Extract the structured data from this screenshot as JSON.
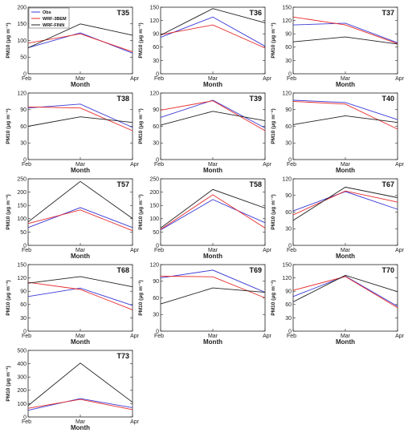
{
  "figure": {
    "legend": {
      "entries": [
        {
          "label": "Obs",
          "color": "#3b3bd6"
        },
        {
          "label": "WRF-3BEM",
          "color": "#e82a2a"
        },
        {
          "label": "WRF-FINN",
          "color": "#222222"
        }
      ],
      "placement": "top-left of first panel"
    }
  },
  "chart_data": [
    {
      "type": "line",
      "title": "T35",
      "categories": [
        "Feb",
        "Mar",
        "Apr"
      ],
      "xlabel": "Month",
      "ylabel": "PM10 (μg m⁻³)",
      "ylim": [
        0,
        200
      ],
      "yticks": [
        0,
        50,
        100,
        150,
        200
      ],
      "series": [
        {
          "name": "Obs",
          "values": [
            78,
            123,
            62
          ]
        },
        {
          "name": "WRF-3BEM",
          "values": [
            92,
            120,
            66
          ]
        },
        {
          "name": "WRF-FINN",
          "values": [
            78,
            150,
            116
          ]
        }
      ]
    },
    {
      "type": "line",
      "title": "T36",
      "categories": [
        "Feb",
        "Mar",
        "Apr"
      ],
      "xlabel": "Month",
      "ylabel": "PM10 (μg m⁻³)",
      "ylim": [
        0,
        150
      ],
      "yticks": [
        0,
        30,
        60,
        90,
        120,
        150
      ],
      "series": [
        {
          "name": "Obs",
          "values": [
            82,
            128,
            62
          ]
        },
        {
          "name": "WRF-3BEM",
          "values": [
            88,
            110,
            58
          ]
        },
        {
          "name": "WRF-FINN",
          "values": [
            87,
            147,
            115
          ]
        }
      ]
    },
    {
      "type": "line",
      "title": "T37",
      "categories": [
        "Feb",
        "Mar",
        "Apr"
      ],
      "xlabel": "Month",
      "ylabel": "PM10 (μg m⁻³)",
      "ylim": [
        0,
        150
      ],
      "yticks": [
        0,
        30,
        60,
        90,
        120,
        150
      ],
      "series": [
        {
          "name": "Obs",
          "values": [
            110,
            114,
            70
          ]
        },
        {
          "name": "WRF-3BEM",
          "values": [
            128,
            110,
            68
          ]
        },
        {
          "name": "WRF-FINN",
          "values": [
            72,
            83,
            67
          ]
        }
      ]
    },
    {
      "type": "line",
      "title": "T38",
      "categories": [
        "Feb",
        "Mar",
        "Apr"
      ],
      "xlabel": "Month",
      "ylabel": "PM10 (μg m⁻³)",
      "ylim": [
        0,
        120
      ],
      "yticks": [
        0,
        30,
        60,
        90,
        120
      ],
      "series": [
        {
          "name": "Obs",
          "values": [
            93,
            100,
            58
          ]
        },
        {
          "name": "WRF-3BEM",
          "values": [
            95,
            93,
            52
          ]
        },
        {
          "name": "WRF-FINN",
          "values": [
            60,
            77,
            67
          ]
        }
      ]
    },
    {
      "type": "line",
      "title": "T39",
      "categories": [
        "Feb",
        "Mar",
        "Apr"
      ],
      "xlabel": "Month",
      "ylabel": "PM10 (μg m⁻³)",
      "ylim": [
        0,
        120
      ],
      "yticks": [
        0,
        30,
        60,
        90,
        120
      ],
      "series": [
        {
          "name": "Obs",
          "values": [
            76,
            107,
            57
          ]
        },
        {
          "name": "WRF-3BEM",
          "values": [
            89,
            106,
            52
          ]
        },
        {
          "name": "WRF-FINN",
          "values": [
            62,
            87,
            70
          ]
        }
      ]
    },
    {
      "type": "line",
      "title": "T40",
      "categories": [
        "Feb",
        "Mar",
        "Apr"
      ],
      "xlabel": "Month",
      "ylabel": "PM10 (μg m⁻³)",
      "ylim": [
        0,
        120
      ],
      "yticks": [
        0,
        30,
        60,
        90,
        120
      ],
      "series": [
        {
          "name": "Obs",
          "values": [
            107,
            103,
            72
          ]
        },
        {
          "name": "WRF-3BEM",
          "values": [
            105,
            100,
            55
          ]
        },
        {
          "name": "WRF-FINN",
          "values": [
            63,
            79,
            67
          ]
        }
      ]
    },
    {
      "type": "line",
      "title": "T57",
      "categories": [
        "Feb",
        "Mar",
        "Apr"
      ],
      "xlabel": "Month",
      "ylabel": "PM10 (μg m⁻³)",
      "ylim": [
        0,
        250
      ],
      "yticks": [
        0,
        50,
        100,
        150,
        200,
        250
      ],
      "series": [
        {
          "name": "Obs",
          "values": [
            67,
            142,
            67
          ]
        },
        {
          "name": "WRF-3BEM",
          "values": [
            82,
            133,
            55
          ]
        },
        {
          "name": "WRF-FINN",
          "values": [
            88,
            240,
            101
          ]
        }
      ]
    },
    {
      "type": "line",
      "title": "T58",
      "categories": [
        "Feb",
        "Mar",
        "Apr"
      ],
      "xlabel": "Month",
      "ylabel": "PM10 (μg m⁻³)",
      "ylim": [
        0,
        250
      ],
      "yticks": [
        0,
        50,
        100,
        150,
        200,
        250
      ],
      "series": [
        {
          "name": "Obs",
          "values": [
            58,
            172,
            85
          ]
        },
        {
          "name": "WRF-3BEM",
          "values": [
            60,
            190,
            65
          ]
        },
        {
          "name": "WRF-FINN",
          "values": [
            65,
            210,
            140
          ]
        }
      ]
    },
    {
      "type": "line",
      "title": "T67",
      "categories": [
        "Feb",
        "Mar",
        "Apr"
      ],
      "xlabel": "Month",
      "ylabel": "PM10 (μg m⁻³)",
      "ylim": [
        0,
        120
      ],
      "yticks": [
        0,
        30,
        60,
        90,
        120
      ],
      "series": [
        {
          "name": "Obs",
          "values": [
            62,
            97,
            65
          ]
        },
        {
          "name": "WRF-3BEM",
          "values": [
            55,
            98,
            78
          ]
        },
        {
          "name": "WRF-FINN",
          "values": [
            45,
            105,
            86
          ]
        }
      ]
    },
    {
      "type": "line",
      "title": "T68",
      "categories": [
        "Feb",
        "Mar",
        "Apr"
      ],
      "xlabel": "Month",
      "ylabel": "PM10 (μg m⁻³)",
      "ylim": [
        0,
        150
      ],
      "yticks": [
        0,
        30,
        60,
        90,
        120,
        150
      ],
      "series": [
        {
          "name": "Obs",
          "values": [
            78,
            97,
            58
          ]
        },
        {
          "name": "WRF-3BEM",
          "values": [
            110,
            94,
            48
          ]
        },
        {
          "name": "WRF-FINN",
          "values": [
            108,
            123,
            100
          ]
        }
      ]
    },
    {
      "type": "line",
      "title": "T69",
      "categories": [
        "Feb",
        "Mar",
        "Apr"
      ],
      "xlabel": "Month",
      "ylabel": "PM10 (μg m⁻³)",
      "ylim": [
        0,
        120
      ],
      "yticks": [
        0,
        30,
        60,
        90,
        120
      ],
      "series": [
        {
          "name": "Obs",
          "values": [
            96,
            110,
            70
          ]
        },
        {
          "name": "WRF-3BEM",
          "values": [
            99,
            98,
            60
          ]
        },
        {
          "name": "WRF-FINN",
          "values": [
            49,
            78,
            70
          ]
        }
      ]
    },
    {
      "type": "line",
      "title": "T70",
      "categories": [
        "Feb",
        "Mar",
        "Apr"
      ],
      "xlabel": "Month",
      "ylabel": "PM10 (μg m⁻³)",
      "ylim": [
        0,
        150
      ],
      "yticks": [
        0,
        30,
        60,
        90,
        120,
        150
      ],
      "series": [
        {
          "name": "Obs",
          "values": [
            78,
            124,
            56
          ]
        },
        {
          "name": "WRF-3BEM",
          "values": [
            92,
            123,
            53
          ]
        },
        {
          "name": "WRF-FINN",
          "values": [
            66,
            126,
            89
          ]
        }
      ]
    },
    {
      "type": "line",
      "title": "T73",
      "categories": [
        "Feb",
        "Mar",
        "Apr"
      ],
      "xlabel": "Month",
      "ylabel": "PM10 (μg m⁻³)",
      "ylim": [
        0,
        500
      ],
      "yticks": [
        0,
        100,
        200,
        300,
        400,
        500
      ],
      "series": [
        {
          "name": "Obs",
          "values": [
            50,
            138,
            70
          ]
        },
        {
          "name": "WRF-3BEM",
          "values": [
            65,
            132,
            55
          ]
        },
        {
          "name": "WRF-FINN",
          "values": [
            85,
            405,
            110
          ]
        }
      ]
    }
  ]
}
